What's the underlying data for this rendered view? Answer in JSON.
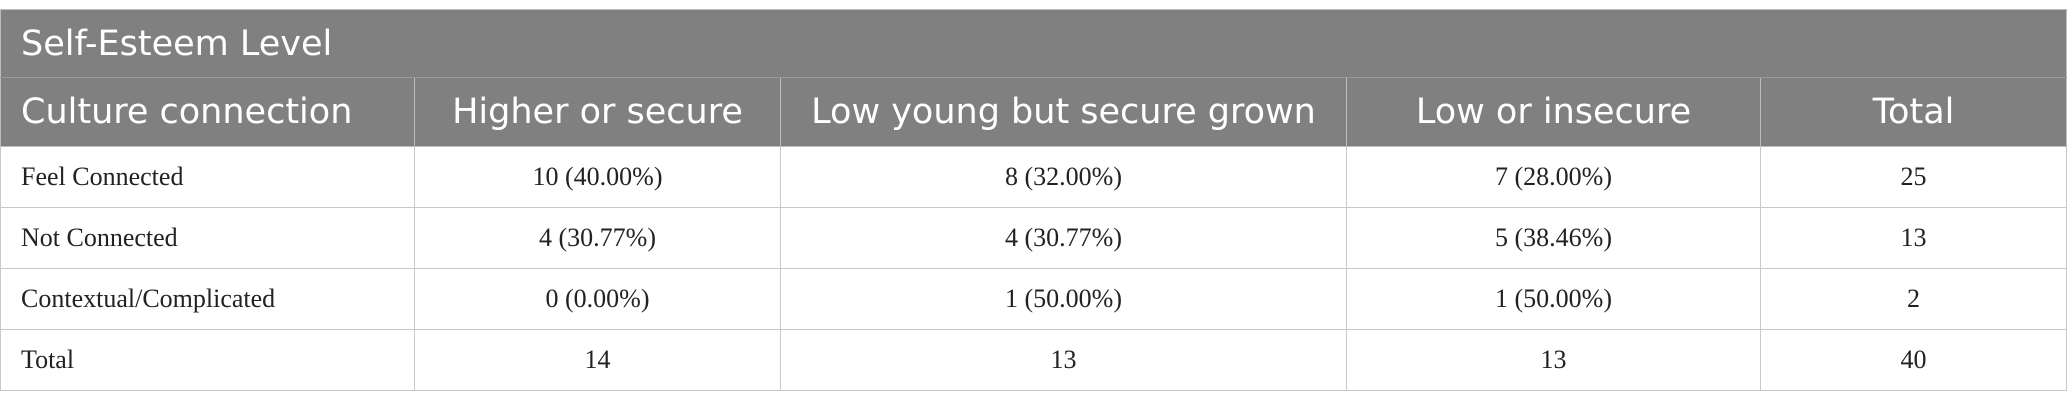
{
  "table": {
    "title": "Self-Esteem Level",
    "header": [
      "Culture connection",
      "Higher or secure",
      "Low young but secure grown",
      "Low or insecure",
      "Total"
    ],
    "rows": [
      [
        "Feel Connected",
        "10 (40.00%)",
        "8 (32.00%)",
        "7 (28.00%)",
        "25"
      ],
      [
        "Not Connected",
        "4 (30.77%)",
        "4 (30.77%)",
        "5 (38.46%)",
        "13"
      ],
      [
        "Contextual/Complicated",
        "0 (0.00%)",
        "1 (50.00%)",
        "1 (50.00%)",
        "2"
      ],
      [
        "Total",
        "14",
        "13",
        "13",
        "40"
      ]
    ]
  }
}
